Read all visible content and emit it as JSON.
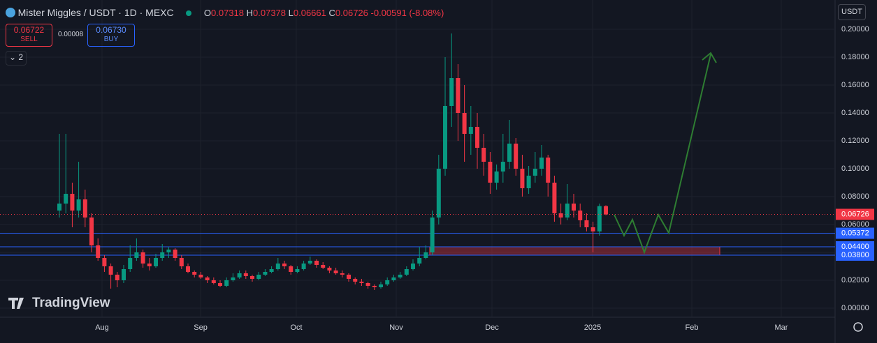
{
  "header": {
    "symbol": "Mister Miggles / USDT · 1D · MEXC",
    "o": "O",
    "h": "H",
    "l": "L",
    "c": "C",
    "change": "-0.00591 (-8.08%)",
    "sell_price": "0.06722",
    "sell": "SELL",
    "spread": "0.00008",
    "buy_price": "0.06730",
    "buy": "BUY",
    "indicators": "2",
    "currency": "USDT",
    "brand": "TradingView"
  },
  "chart_data": {
    "type": "candlestick",
    "up_color": "#089981",
    "down_color": "#f23645",
    "ylim": [
      -0.0065,
      0.221
    ],
    "yticks": [
      {
        "value": 0,
        "label": "0.00000"
      },
      {
        "value": 0.02,
        "label": "0.02000"
      },
      {
        "value": 0.04,
        "label": "0.04000"
      },
      {
        "value": 0.06,
        "label": "0.06000"
      },
      {
        "value": 0.08,
        "label": "0.08000"
      },
      {
        "value": 0.1,
        "label": "0.10000"
      },
      {
        "value": 0.12,
        "label": "0.12000"
      },
      {
        "value": 0.14,
        "label": "0.14000"
      },
      {
        "value": 0.16,
        "label": "0.16000"
      },
      {
        "value": 0.18,
        "label": "0.18000"
      },
      {
        "value": 0.2,
        "label": "0.20000"
      }
    ],
    "xlim": [
      -9.24,
      120.65
    ],
    "xticks": [
      {
        "value": 6.63,
        "label": "Aug"
      },
      {
        "value": 21.96,
        "label": "Sep"
      },
      {
        "value": 36.85,
        "label": "Oct"
      },
      {
        "value": 52.39,
        "label": "Nov"
      },
      {
        "value": 67.28,
        "label": "Dec"
      },
      {
        "value": 82.93,
        "label": "2025"
      },
      {
        "value": 98.37,
        "label": "Feb"
      },
      {
        "value": 112.28,
        "label": "Mar"
      }
    ],
    "grid": true,
    "levels": [
      {
        "value": 0.05372,
        "label": "0.05372"
      },
      {
        "value": 0.044,
        "label": "0.04400"
      },
      {
        "value": 0.038,
        "label": "0.03800"
      }
    ],
    "level_color": "#2962ff",
    "zone": [
      0.038,
      0.044
    ],
    "ohlc": [
      [
        0.07,
        0.125,
        0.065,
        0.075
      ],
      [
        0.075,
        0.125,
        0.068,
        0.082
      ],
      [
        0.082,
        0.09,
        0.058,
        0.07
      ],
      [
        0.07,
        0.105,
        0.065,
        0.078
      ],
      [
        0.078,
        0.085,
        0.058,
        0.065
      ],
      [
        0.065,
        0.068,
        0.04,
        0.045
      ],
      [
        0.045,
        0.05,
        0.034,
        0.036
      ],
      [
        0.036,
        0.038,
        0.026,
        0.03
      ],
      [
        0.03,
        0.032,
        0.014,
        0.024
      ],
      [
        0.024,
        0.026,
        0.015,
        0.02
      ],
      [
        0.02,
        0.031,
        0.018,
        0.028
      ],
      [
        0.028,
        0.045,
        0.026,
        0.036
      ],
      [
        0.036,
        0.05,
        0.034,
        0.04
      ],
      [
        0.04,
        0.042,
        0.029,
        0.032
      ],
      [
        0.032,
        0.036,
        0.027,
        0.03
      ],
      [
        0.03,
        0.039,
        0.029,
        0.036
      ],
      [
        0.036,
        0.046,
        0.034,
        0.04
      ],
      [
        0.04,
        0.044,
        0.036,
        0.042
      ],
      [
        0.042,
        0.043,
        0.034,
        0.036
      ],
      [
        0.036,
        0.038,
        0.028,
        0.03
      ],
      [
        0.03,
        0.032,
        0.025,
        0.026
      ],
      [
        0.026,
        0.027,
        0.022,
        0.024
      ],
      [
        0.024,
        0.026,
        0.021,
        0.022
      ],
      [
        0.022,
        0.023,
        0.018,
        0.02
      ],
      [
        0.02,
        0.022,
        0.017,
        0.018
      ],
      [
        0.018,
        0.02,
        0.015,
        0.016
      ],
      [
        0.016,
        0.022,
        0.015,
        0.02
      ],
      [
        0.02,
        0.025,
        0.019,
        0.022
      ],
      [
        0.022,
        0.027,
        0.021,
        0.025
      ],
      [
        0.025,
        0.027,
        0.021,
        0.023
      ],
      [
        0.023,
        0.024,
        0.019,
        0.021
      ],
      [
        0.021,
        0.026,
        0.02,
        0.024
      ],
      [
        0.024,
        0.028,
        0.023,
        0.026
      ],
      [
        0.026,
        0.03,
        0.025,
        0.028
      ],
      [
        0.028,
        0.036,
        0.027,
        0.032
      ],
      [
        0.032,
        0.034,
        0.028,
        0.03
      ],
      [
        0.03,
        0.031,
        0.024,
        0.026
      ],
      [
        0.026,
        0.03,
        0.025,
        0.028
      ],
      [
        0.028,
        0.034,
        0.027,
        0.032
      ],
      [
        0.032,
        0.037,
        0.031,
        0.034
      ],
      [
        0.034,
        0.035,
        0.029,
        0.031
      ],
      [
        0.031,
        0.033,
        0.028,
        0.029
      ],
      [
        0.029,
        0.03,
        0.025,
        0.027
      ],
      [
        0.027,
        0.029,
        0.024,
        0.025
      ],
      [
        0.025,
        0.027,
        0.022,
        0.024
      ],
      [
        0.024,
        0.025,
        0.019,
        0.021
      ],
      [
        0.021,
        0.022,
        0.017,
        0.019
      ],
      [
        0.019,
        0.021,
        0.016,
        0.018
      ],
      [
        0.018,
        0.019,
        0.014,
        0.016
      ],
      [
        0.016,
        0.017,
        0.013,
        0.015
      ],
      [
        0.015,
        0.019,
        0.014,
        0.017
      ],
      [
        0.017,
        0.022,
        0.016,
        0.02
      ],
      [
        0.02,
        0.024,
        0.019,
        0.022
      ],
      [
        0.022,
        0.026,
        0.021,
        0.024
      ],
      [
        0.024,
        0.03,
        0.023,
        0.028
      ],
      [
        0.028,
        0.035,
        0.027,
        0.032
      ],
      [
        0.032,
        0.044,
        0.03,
        0.036
      ],
      [
        0.036,
        0.045,
        0.035,
        0.04
      ],
      [
        0.04,
        0.07,
        0.038,
        0.065
      ],
      [
        0.065,
        0.11,
        0.06,
        0.1
      ],
      [
        0.1,
        0.18,
        0.095,
        0.145
      ],
      [
        0.145,
        0.197,
        0.13,
        0.165
      ],
      [
        0.165,
        0.175,
        0.12,
        0.14
      ],
      [
        0.14,
        0.16,
        0.105,
        0.125
      ],
      [
        0.125,
        0.145,
        0.11,
        0.13
      ],
      [
        0.13,
        0.14,
        0.1,
        0.115
      ],
      [
        0.115,
        0.125,
        0.095,
        0.105
      ],
      [
        0.105,
        0.112,
        0.082,
        0.09
      ],
      [
        0.09,
        0.103,
        0.085,
        0.098
      ],
      [
        0.098,
        0.125,
        0.09,
        0.105
      ],
      [
        0.105,
        0.135,
        0.1,
        0.118
      ],
      [
        0.118,
        0.122,
        0.095,
        0.1
      ],
      [
        0.1,
        0.11,
        0.08,
        0.086
      ],
      [
        0.086,
        0.102,
        0.082,
        0.095
      ],
      [
        0.095,
        0.112,
        0.09,
        0.1
      ],
      [
        0.1,
        0.117,
        0.095,
        0.108
      ],
      [
        0.108,
        0.11,
        0.08,
        0.09
      ],
      [
        0.09,
        0.095,
        0.062,
        0.068
      ],
      [
        0.068,
        0.075,
        0.06,
        0.065
      ],
      [
        0.065,
        0.089,
        0.063,
        0.075
      ],
      [
        0.075,
        0.082,
        0.065,
        0.07
      ],
      [
        0.07,
        0.075,
        0.058,
        0.063
      ],
      [
        0.063,
        0.068,
        0.055,
        0.058
      ],
      [
        0.058,
        0.062,
        0.04,
        0.055
      ],
      [
        0.055,
        0.075,
        0.052,
        0.07318
      ],
      [
        0.07318,
        0.07378,
        0.06661,
        0.06726
      ]
    ]
  }
}
